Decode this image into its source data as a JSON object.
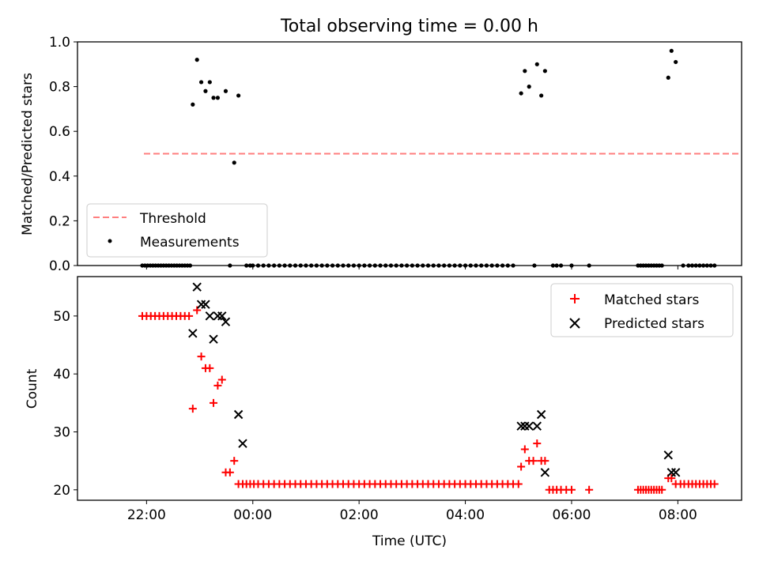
{
  "figure": {
    "title": "Total observing time = 0.00 h",
    "xlabel": "Time (UTC)",
    "xticks": [
      "22:00",
      "00:00",
      "02:00",
      "04:00",
      "06:00",
      "08:00"
    ]
  },
  "colors": {
    "threshold": "#ff7f7f",
    "measurements": "#000000",
    "matched": "#ff0000",
    "predicted": "#000000"
  },
  "chart_data": [
    {
      "type": "scatter",
      "ylabel": "Matched/Predicted stars",
      "ylim": [
        0,
        1
      ],
      "yticks": [
        "0.0",
        "0.2",
        "0.4",
        "0.6",
        "0.8",
        "1.0"
      ],
      "xlim_hours": [
        20.7,
        33.2
      ],
      "legend": {
        "placement": "lower-left",
        "entries": [
          "Threshold",
          "Measurements"
        ]
      },
      "threshold": {
        "name": "Threshold",
        "value": 0.5,
        "x_range_hours": [
          21.95,
          33.25
        ]
      },
      "series": [
        {
          "name": "Measurements",
          "x_hours": [
            22.87,
            22.95,
            23.03,
            23.11,
            23.19,
            23.26,
            23.34,
            23.49,
            23.65,
            23.73,
            29.05,
            29.12,
            29.2,
            29.35,
            29.43,
            29.5,
            31.82,
            31.88,
            31.96
          ],
          "y": [
            0.72,
            0.92,
            0.82,
            0.78,
            0.82,
            0.75,
            0.75,
            0.78,
            0.46,
            0.76,
            0.77,
            0.87,
            0.8,
            0.9,
            0.76,
            0.87,
            0.84,
            0.96,
            0.91
          ],
          "zero_x_hours": [
            21.92,
            21.97,
            22.02,
            22.07,
            22.12,
            22.17,
            22.22,
            22.27,
            22.32,
            22.37,
            22.42,
            22.47,
            22.52,
            22.57,
            22.62,
            22.67,
            22.72,
            22.77,
            22.82,
            23.57,
            23.88,
            23.95,
            24.0,
            24.1,
            24.2,
            24.3,
            24.4,
            24.5,
            24.6,
            24.7,
            24.8,
            24.9,
            25.0,
            25.1,
            25.2,
            25.3,
            25.4,
            25.5,
            25.6,
            25.7,
            25.8,
            25.9,
            26.0,
            26.1,
            26.2,
            26.3,
            26.4,
            26.5,
            26.6,
            26.7,
            26.8,
            26.9,
            27.0,
            27.1,
            27.2,
            27.3,
            27.4,
            27.5,
            27.6,
            27.7,
            27.8,
            27.9,
            28.0,
            28.1,
            28.2,
            28.3,
            28.4,
            28.5,
            28.6,
            28.7,
            28.8,
            28.9,
            29.3,
            29.65,
            29.72,
            29.8,
            30.0,
            30.33,
            31.25,
            31.3,
            31.35,
            31.4,
            31.45,
            31.5,
            31.55,
            31.6,
            31.65,
            31.7,
            32.1,
            32.2,
            32.27,
            32.34,
            32.41,
            32.48,
            32.55,
            32.62,
            32.69
          ]
        }
      ]
    },
    {
      "type": "scatter",
      "ylabel": "Count",
      "ylim": [
        18.2,
        56.8
      ],
      "yticks": [
        "20",
        "30",
        "40",
        "50"
      ],
      "xlim_hours": [
        20.7,
        33.2
      ],
      "legend": {
        "placement": "upper-right",
        "entries": [
          "Matched stars",
          "Predicted stars"
        ]
      },
      "series": [
        {
          "name": "Matched stars",
          "x_hours": [
            21.92,
            22.0,
            22.08,
            22.16,
            22.24,
            22.32,
            22.4,
            22.48,
            22.56,
            22.64,
            22.72,
            22.8,
            22.87,
            22.95,
            23.03,
            23.11,
            23.19,
            23.26,
            23.34,
            23.42,
            23.49,
            23.57,
            23.65,
            23.73,
            23.81,
            23.88,
            23.95,
            24.02,
            24.1,
            24.2,
            24.3,
            24.4,
            24.5,
            24.6,
            24.7,
            24.8,
            24.9,
            25.0,
            25.1,
            25.2,
            25.3,
            25.4,
            25.5,
            25.6,
            25.7,
            25.8,
            25.9,
            26.0,
            26.1,
            26.2,
            26.3,
            26.4,
            26.5,
            26.6,
            26.7,
            26.8,
            26.9,
            27.0,
            27.1,
            27.2,
            27.3,
            27.4,
            27.5,
            27.6,
            27.7,
            27.8,
            27.9,
            28.0,
            28.1,
            28.2,
            28.3,
            28.4,
            28.5,
            28.6,
            28.7,
            28.8,
            28.9,
            29.0,
            29.05,
            29.12,
            29.2,
            29.28,
            29.35,
            29.43,
            29.5,
            29.58,
            29.65,
            29.72,
            29.8,
            29.9,
            30.0,
            30.33,
            31.25,
            31.3,
            31.35,
            31.4,
            31.45,
            31.5,
            31.55,
            31.6,
            31.65,
            31.7,
            31.82,
            31.88,
            31.96,
            32.05,
            32.12,
            32.2,
            32.27,
            32.34,
            32.41,
            32.48,
            32.55,
            32.62,
            32.69
          ],
          "y": [
            50,
            50,
            50,
            50,
            50,
            50,
            50,
            50,
            50,
            50,
            50,
            50,
            34,
            51,
            43,
            41,
            41,
            35,
            38,
            39,
            23,
            23,
            25,
            21,
            21,
            21,
            21,
            21,
            21,
            21,
            21,
            21,
            21,
            21,
            21,
            21,
            21,
            21,
            21,
            21,
            21,
            21,
            21,
            21,
            21,
            21,
            21,
            21,
            21,
            21,
            21,
            21,
            21,
            21,
            21,
            21,
            21,
            21,
            21,
            21,
            21,
            21,
            21,
            21,
            21,
            21,
            21,
            21,
            21,
            21,
            21,
            21,
            21,
            21,
            21,
            21,
            21,
            21,
            24,
            27,
            25,
            25,
            28,
            25,
            25,
            20,
            20,
            20,
            20,
            20,
            20,
            20,
            20,
            20,
            20,
            20,
            20,
            20,
            20,
            20,
            20,
            20,
            22,
            22,
            21,
            21,
            21,
            21,
            21,
            21,
            21,
            21,
            21,
            21,
            21
          ]
        },
        {
          "name": "Predicted stars",
          "x_hours": [
            22.87,
            22.95,
            23.03,
            23.11,
            23.19,
            23.26,
            23.34,
            23.42,
            23.49,
            23.73,
            23.81,
            29.05,
            29.12,
            29.2,
            29.35,
            29.43,
            29.5,
            31.82,
            31.88,
            31.96
          ],
          "y": [
            47,
            55,
            52,
            52,
            50,
            46,
            50,
            50,
            49,
            33,
            28,
            31,
            31,
            31,
            31,
            33,
            23,
            26,
            23,
            23
          ]
        }
      ]
    }
  ]
}
